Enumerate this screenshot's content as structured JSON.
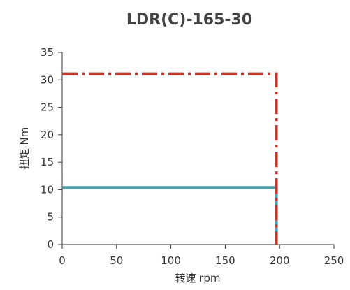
{
  "chart_data": {
    "type": "line",
    "title": "LDR(C)-165-30",
    "xlabel": "转速 rpm",
    "ylabel": "扭矩 Nm",
    "xlim": [
      0,
      250
    ],
    "ylim": [
      0,
      35
    ],
    "x_ticks": [
      0,
      50,
      100,
      150,
      200,
      250
    ],
    "y_ticks": [
      0,
      5,
      10,
      15,
      20,
      25,
      30,
      35
    ],
    "grid": false,
    "series": [
      {
        "color": "#4a9fb0",
        "style": "solid",
        "points": [
          [
            0,
            10.4
          ],
          [
            197,
            10.4
          ],
          [
            197,
            0
          ]
        ]
      },
      {
        "color": "#c0392b",
        "style": "dash-dot",
        "points": [
          [
            0,
            31.1
          ],
          [
            197,
            31.1
          ],
          [
            197,
            0
          ]
        ]
      }
    ]
  }
}
